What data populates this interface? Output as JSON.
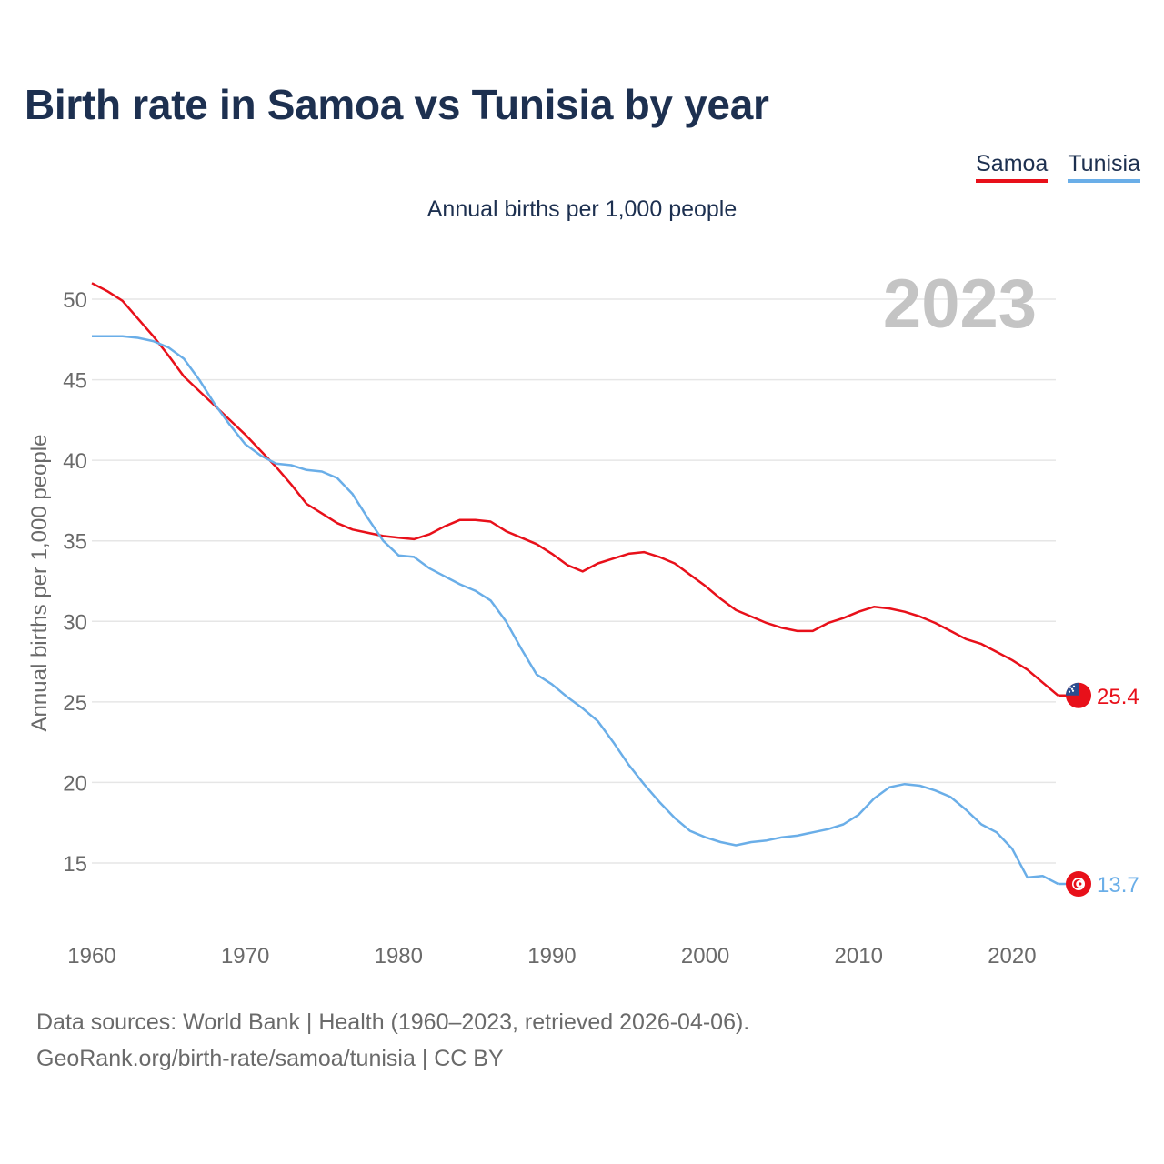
{
  "colors": {
    "samoa": "#e8101a",
    "tunisia": "#6aaee8",
    "grid": "#e6e6e6",
    "axis_text": "#6a6a6a",
    "year_watermark": "#c4c4c4"
  },
  "chart_data": {
    "type": "line",
    "title": "Birth rate in Samoa vs Tunisia by year",
    "subtitle": "Annual births per 1,000 people",
    "ylabel": "Annual births per 1,000 people",
    "xlabel": "",
    "year_label": "2023",
    "xlim": [
      1960,
      2023
    ],
    "ylim": [
      11,
      52
    ],
    "x_ticks": [
      1960,
      1970,
      1980,
      1990,
      2000,
      2010,
      2020
    ],
    "y_ticks": [
      15,
      20,
      25,
      30,
      35,
      40,
      45,
      50
    ],
    "x": [
      1960,
      1961,
      1962,
      1963,
      1964,
      1965,
      1966,
      1967,
      1968,
      1969,
      1970,
      1971,
      1972,
      1973,
      1974,
      1975,
      1976,
      1977,
      1978,
      1979,
      1980,
      1981,
      1982,
      1983,
      1984,
      1985,
      1986,
      1987,
      1988,
      1989,
      1990,
      1991,
      1992,
      1993,
      1994,
      1995,
      1996,
      1997,
      1998,
      1999,
      2000,
      2001,
      2002,
      2003,
      2004,
      2005,
      2006,
      2007,
      2008,
      2009,
      2010,
      2011,
      2012,
      2013,
      2014,
      2015,
      2016,
      2017,
      2018,
      2019,
      2020,
      2021,
      2022,
      2023
    ],
    "series": [
      {
        "name": "Samoa",
        "color": "#e8101a",
        "end_label": "25.4",
        "values": [
          51.0,
          50.5,
          49.9,
          48.8,
          47.7,
          46.5,
          45.2,
          44.3,
          43.4,
          42.5,
          41.6,
          40.6,
          39.6,
          38.5,
          37.3,
          36.7,
          36.1,
          35.7,
          35.5,
          35.3,
          35.2,
          35.1,
          35.4,
          35.9,
          36.3,
          36.3,
          36.2,
          35.6,
          35.2,
          34.8,
          34.2,
          33.5,
          33.1,
          33.6,
          33.9,
          34.2,
          34.3,
          34.0,
          33.6,
          32.9,
          32.2,
          31.4,
          30.7,
          30.3,
          29.9,
          29.6,
          29.4,
          29.4,
          29.9,
          30.2,
          30.6,
          30.9,
          30.8,
          30.6,
          30.3,
          29.9,
          29.4,
          28.9,
          28.6,
          28.1,
          27.6,
          27.0,
          26.2,
          25.4
        ]
      },
      {
        "name": "Tunisia",
        "color": "#6aaee8",
        "end_label": "13.7",
        "values": [
          47.7,
          47.7,
          47.7,
          47.6,
          47.4,
          47.0,
          46.3,
          45.0,
          43.5,
          42.2,
          41.0,
          40.3,
          39.8,
          39.7,
          39.4,
          39.3,
          38.9,
          37.9,
          36.4,
          35.0,
          34.1,
          34.0,
          33.3,
          32.8,
          32.3,
          31.9,
          31.3,
          30.0,
          28.3,
          26.7,
          26.1,
          25.3,
          24.6,
          23.8,
          22.5,
          21.1,
          19.9,
          18.8,
          17.8,
          17.0,
          16.6,
          16.3,
          16.1,
          16.3,
          16.4,
          16.6,
          16.7,
          16.9,
          17.1,
          17.4,
          18.0,
          19.0,
          19.7,
          19.9,
          19.8,
          19.5,
          19.1,
          18.3,
          17.4,
          16.9,
          15.9,
          14.1,
          14.2,
          13.7
        ]
      }
    ]
  },
  "legend": {
    "items": [
      "Samoa",
      "Tunisia"
    ]
  },
  "flags": {
    "samoa": "samoa-flag",
    "tunisia": "tunisia-flag"
  },
  "footer": {
    "line1": "Data sources: World Bank | Health (1960–2023, retrieved 2026-04-06).",
    "line2": "GeoRank.org/birth-rate/samoa/tunisia | CC BY"
  }
}
